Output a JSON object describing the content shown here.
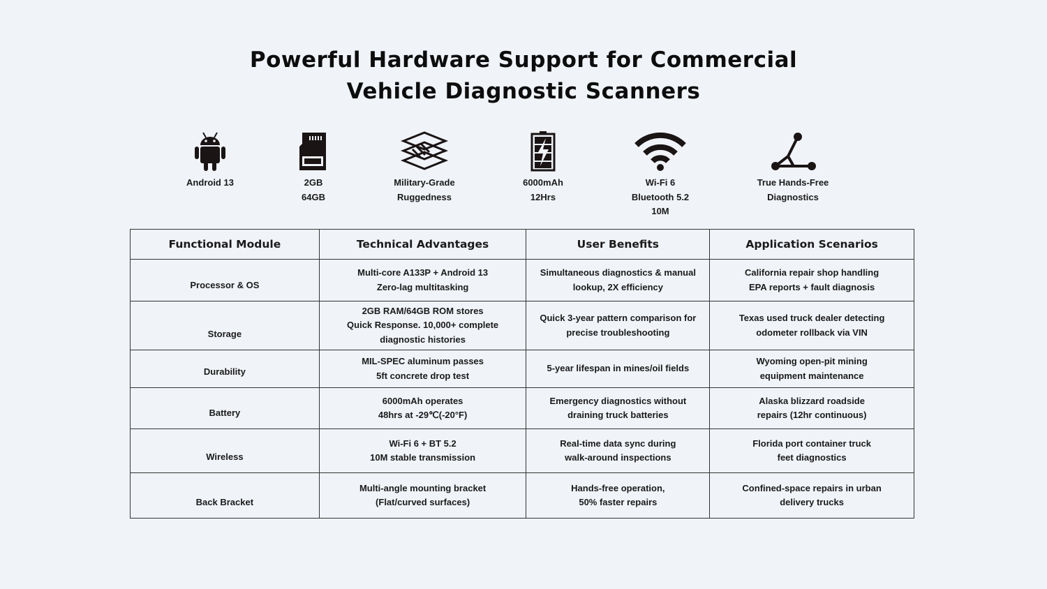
{
  "title": {
    "line1": "Powerful Hardware Support for Commercial",
    "line2": "Vehicle Diagnostic Scanners"
  },
  "features": [
    {
      "icon": "android-icon",
      "lines": [
        "Android 13"
      ]
    },
    {
      "icon": "sd-card-icon",
      "lines": [
        "2GB",
        "64GB"
      ]
    },
    {
      "icon": "layers-icon",
      "lines": [
        "Military-Grade",
        "Ruggedness"
      ]
    },
    {
      "icon": "battery-icon",
      "lines": [
        "6000mAh",
        "12Hrs"
      ]
    },
    {
      "icon": "wifi-icon",
      "lines": [
        "Wi-Fi 6",
        "Bluetooth 5.2",
        "10M"
      ]
    },
    {
      "icon": "bracket-stand-icon",
      "lines": [
        "True Hands-Free",
        "Diagnostics"
      ]
    }
  ],
  "table": {
    "headers": [
      "Functional Module",
      "Technical Advantages",
      "User Benefits",
      "Application Scenarios"
    ],
    "rows": [
      [
        "Processor & OS",
        "Multi-core A133P + Android 13\nZero-lag multitasking",
        "Simultaneous diagnostics & manual\nlookup, 2X efficiency",
        "California repair shop handling\nEPA reports + fault diagnosis"
      ],
      [
        "Storage",
        "2GB RAM/64GB ROM stores\nQuick Response. 10,000+ complete\ndiagnostic histories",
        "Quick 3-year pattern comparison for\nprecise troubleshooting",
        "Texas used truck dealer detecting\nodometer rollback via VIN"
      ],
      [
        "Durability",
        "MIL-SPEC aluminum passes\n5ft concrete drop test",
        "5-year lifespan in mines/oil fields",
        "Wyoming open-pit mining\nequipment maintenance"
      ],
      [
        "Battery",
        "6000mAh operates\n48hrs at -29℃(-20°F)",
        "Emergency diagnostics without\ndraining truck batteries",
        "Alaska blizzard roadside\nrepairs (12hr continuous)"
      ],
      [
        "Wireless",
        "Wi-Fi 6 + BT 5.2\n10M stable transmission",
        "Real-time data sync during\nwalk-around inspections",
        "Florida port container truck\nfeet diagnostics"
      ],
      [
        "Back Bracket",
        "Multi-angle mounting bracket\n(Flat/curved surfaces)",
        "Hands-free operation,\n50% faster repairs",
        "Confined-space repairs in urban\ndelivery trucks"
      ]
    ]
  }
}
